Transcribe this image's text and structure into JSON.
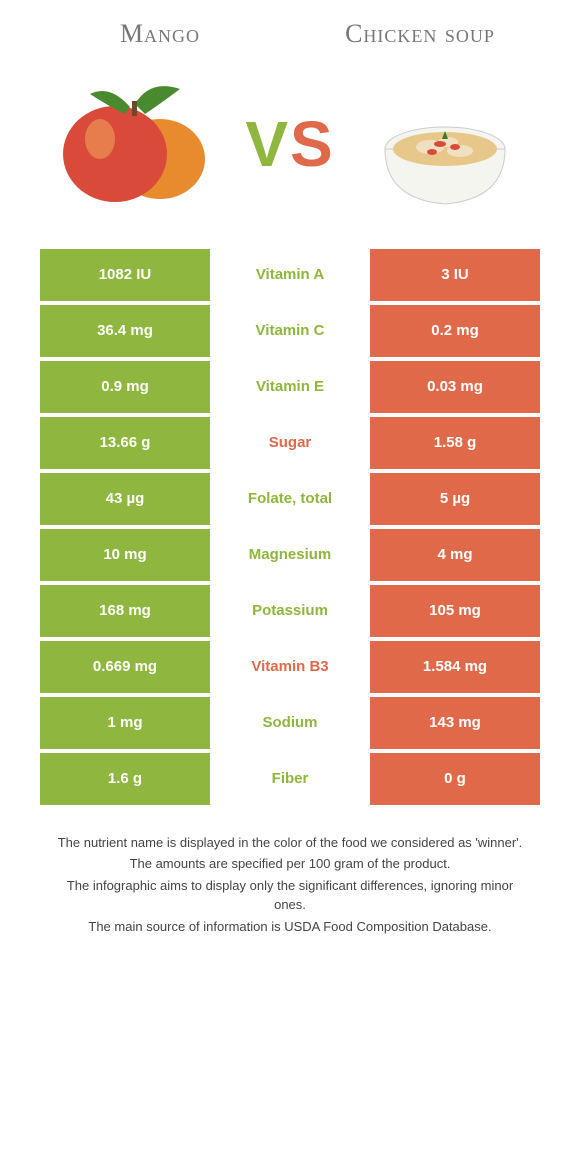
{
  "colors": {
    "mango": "#8fb63f",
    "soup": "#e0694a",
    "background": "#ffffff",
    "heading_text": "#777777"
  },
  "foods": {
    "left": {
      "name": "Mango"
    },
    "right": {
      "name": "Chicken soup"
    }
  },
  "vs_label_v": "V",
  "vs_label_s": "S",
  "nutrients": [
    {
      "name": "Vitamin A",
      "left": "1082 IU",
      "right": "3 IU",
      "winner": "left"
    },
    {
      "name": "Vitamin C",
      "left": "36.4 mg",
      "right": "0.2 mg",
      "winner": "left"
    },
    {
      "name": "Vitamin E",
      "left": "0.9 mg",
      "right": "0.03 mg",
      "winner": "left"
    },
    {
      "name": "Sugar",
      "left": "13.66 g",
      "right": "1.58 g",
      "winner": "right"
    },
    {
      "name": "Folate, total",
      "left": "43 µg",
      "right": "5 µg",
      "winner": "left"
    },
    {
      "name": "Magnesium",
      "left": "10 mg",
      "right": "4 mg",
      "winner": "left"
    },
    {
      "name": "Potassium",
      "left": "168 mg",
      "right": "105 mg",
      "winner": "left"
    },
    {
      "name": "Vitamin B3",
      "left": "0.669 mg",
      "right": "1.584 mg",
      "winner": "right"
    },
    {
      "name": "Sodium",
      "left": "1 mg",
      "right": "143 mg",
      "winner": "left"
    },
    {
      "name": "Fiber",
      "left": "1.6 g",
      "right": "0 g",
      "winner": "left"
    }
  ],
  "footer": {
    "line1": "The nutrient name is displayed in the color of the food we considered as 'winner'.",
    "line2": "The amounts are specified per 100 gram of the product.",
    "line3": "The infographic aims to display only the significant differences, ignoring minor ones.",
    "line4": "The main source of information is USDA Food Composition Database."
  }
}
